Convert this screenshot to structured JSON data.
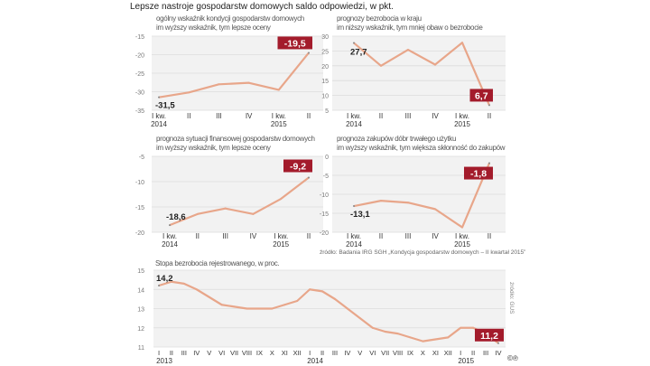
{
  "title": "Lepsze nastroje gospodarstw domowych saldo odpowiedzi, w pkt.",
  "source_top": "źródło: Badania IRG SGH „Kondycja gospodarstw domowych – II kwartał 2015”",
  "source_bottom": "źródło: GUS",
  "logo": "©℗",
  "colors": {
    "line": "#e8a68a",
    "label_bg": "#a31b2b",
    "plot_bg": "#f2f2f2",
    "grid": "#dcdcdc"
  },
  "chart_data": [
    {
      "type": "line",
      "title": "ogólny wskaźnik kondycji gospodarstw domowych",
      "subtitle": "im wyższy wskaźnik, tym lepsze oceny",
      "categories": [
        "I kw.",
        "II",
        "III",
        "IV",
        "I kw.",
        "II"
      ],
      "years": [
        "2014",
        "",
        "",
        "",
        "2015",
        ""
      ],
      "values": [
        -31.5,
        -30.2,
        -28.0,
        -27.6,
        -29.5,
        -19.5
      ],
      "ylim": [
        -35,
        -15
      ],
      "yticks": [
        "-15",
        "-20",
        "-25",
        "-30",
        "-35"
      ],
      "first_label": "-31,5",
      "last_label": "-19,5"
    },
    {
      "type": "line",
      "title": "prognozy bezrobocia w kraju",
      "subtitle": "im niższy wskaźnik, tym mniej obaw o bezrobocie",
      "categories": [
        "I kw.",
        "II",
        "III",
        "IV",
        "I kw.",
        "II"
      ],
      "years": [
        "2014",
        "",
        "",
        "",
        "2015",
        ""
      ],
      "values": [
        27.7,
        20.0,
        25.4,
        20.4,
        27.8,
        6.7
      ],
      "ylim": [
        5,
        30
      ],
      "yticks": [
        "30",
        "25",
        "20",
        "15",
        "10",
        "5"
      ],
      "first_label": "27,7",
      "last_label": "6,7"
    },
    {
      "type": "line",
      "title": "prognoza sytuacji finansowej gospodarstw domowych",
      "subtitle": "im wyższy wskaźnik, tym lepsze oceny",
      "categories": [
        "I kw.",
        "II",
        "III",
        "IV",
        "I kw.",
        "II"
      ],
      "years": [
        "2014",
        "",
        "",
        "",
        "2015",
        ""
      ],
      "values": [
        -18.6,
        -16.4,
        -15.3,
        -16.4,
        -13.4,
        -9.2
      ],
      "ylim": [
        -20,
        -5
      ],
      "yticks": [
        "-5",
        "-10",
        "-15",
        "-20"
      ],
      "first_label": "-18,6",
      "last_label": "-9,2"
    },
    {
      "type": "line",
      "title": "prognoza zakupów dóbr trwałego użytku",
      "subtitle": "im wyższy wskaźnik, tym większa skłonność do zakupów",
      "categories": [
        "I kw.",
        "II",
        "III",
        "IV",
        "I kw.",
        "II"
      ],
      "years": [
        "2014",
        "",
        "",
        "",
        "2015",
        ""
      ],
      "values": [
        -13.1,
        -11.7,
        -12.2,
        -13.9,
        -18.7,
        -1.8
      ],
      "ylim": [
        -20,
        0
      ],
      "yticks": [
        "0",
        "-5",
        "-10",
        "-15",
        "-20"
      ],
      "first_label": "-13,1",
      "last_label": "-1,8"
    },
    {
      "type": "line",
      "title": "Stopa bezrobocia rejestrowanego, w proc.",
      "subtitle": "",
      "categories": [
        "I",
        "II",
        "III",
        "IV",
        "V",
        "VI",
        "VII",
        "VIII",
        "IX",
        "X",
        "XI",
        "XII",
        "I",
        "II",
        "III",
        "IV",
        "V",
        "VI",
        "VII",
        "VIII",
        "IX",
        "X",
        "XI",
        "XII",
        "I",
        "II",
        "III",
        "IV"
      ],
      "years": [
        "2013",
        "",
        "",
        "",
        "",
        "",
        "",
        "",
        "",
        "",
        "",
        "",
        "2014",
        "",
        "",
        "",
        "",
        "",
        "",
        "",
        "",
        "",
        "",
        "",
        "2015",
        "",
        "",
        ""
      ],
      "values": [
        14.2,
        14.4,
        14.3,
        14.0,
        13.6,
        13.2,
        13.1,
        13.0,
        13.0,
        13.0,
        13.2,
        13.4,
        14.0,
        13.9,
        13.5,
        13.0,
        12.5,
        12.0,
        11.8,
        11.7,
        11.5,
        11.3,
        11.4,
        11.5,
        12.0,
        12.0,
        11.7,
        11.2
      ],
      "ylim": [
        11,
        15
      ],
      "yticks": [
        "15",
        "14",
        "13",
        "12",
        "11"
      ],
      "first_label": "14,2",
      "last_label": "11,2"
    }
  ]
}
